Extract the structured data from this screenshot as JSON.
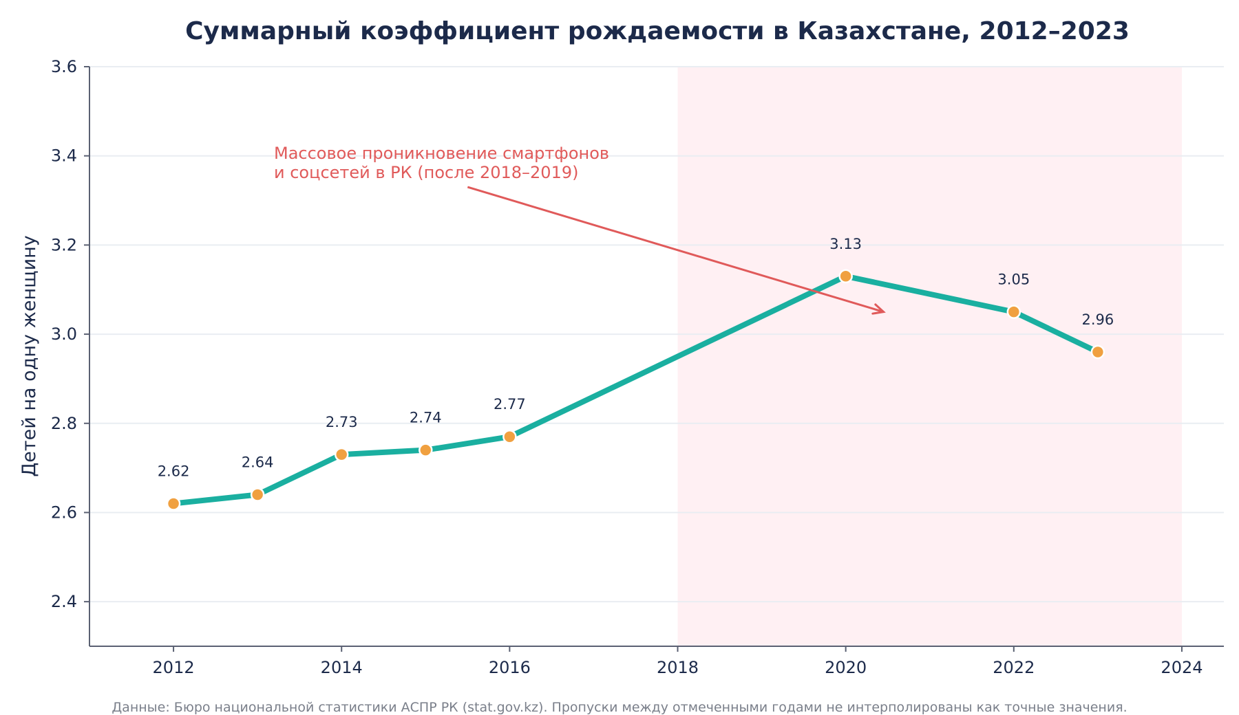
{
  "chart_data": {
    "type": "line",
    "title": "Суммарный коэффициент рождаемости в Казахстане, 2012–2023",
    "xlabel": "",
    "ylabel": "Детей на одну женщину",
    "x": [
      2012,
      2013,
      2014,
      2015,
      2016,
      2020,
      2022,
      2023
    ],
    "series": [
      {
        "values": [
          2.62,
          2.64,
          2.73,
          2.74,
          2.77,
          3.13,
          3.05,
          2.96
        ],
        "data_labels": [
          "2.62",
          "2.64",
          "2.73",
          "2.74",
          "2.77",
          "3.13",
          "3.05",
          "2.96"
        ],
        "color": "#1aafa0",
        "marker_color": "#f0a040"
      }
    ],
    "xlim": [
      2011,
      2024.5
    ],
    "ylim": [
      2.3,
      3.6
    ],
    "xticks": [
      2012,
      2014,
      2016,
      2018,
      2020,
      2022,
      2024
    ],
    "xtick_labels": [
      "2012",
      "2014",
      "2016",
      "2018",
      "2020",
      "2022",
      "2024"
    ],
    "yticks": [
      2.4,
      2.6,
      2.8,
      3.0,
      3.2,
      3.4,
      3.6
    ],
    "ytick_labels": [
      "2.4",
      "2.6",
      "2.8",
      "3.0",
      "3.2",
      "3.4",
      "3.6"
    ],
    "grid": "horizontal",
    "highlight_span": {
      "from": 2018,
      "to": 2024,
      "color": "#fff0f3"
    },
    "annotation": {
      "lines": [
        "Массовое проникновение смартфонов",
        "и соцсетей в РК (после 2018–2019)"
      ],
      "color": "#e05a5a",
      "arrow_from": [
        2015.5,
        3.33
      ],
      "arrow_to": [
        2020.45,
        3.05
      ]
    },
    "source_note": "Данные: Бюро национальной статистики АСПР РК (stat.gov.kz). Пропуски между отмеченными годами не интерполированы как точные значения."
  }
}
